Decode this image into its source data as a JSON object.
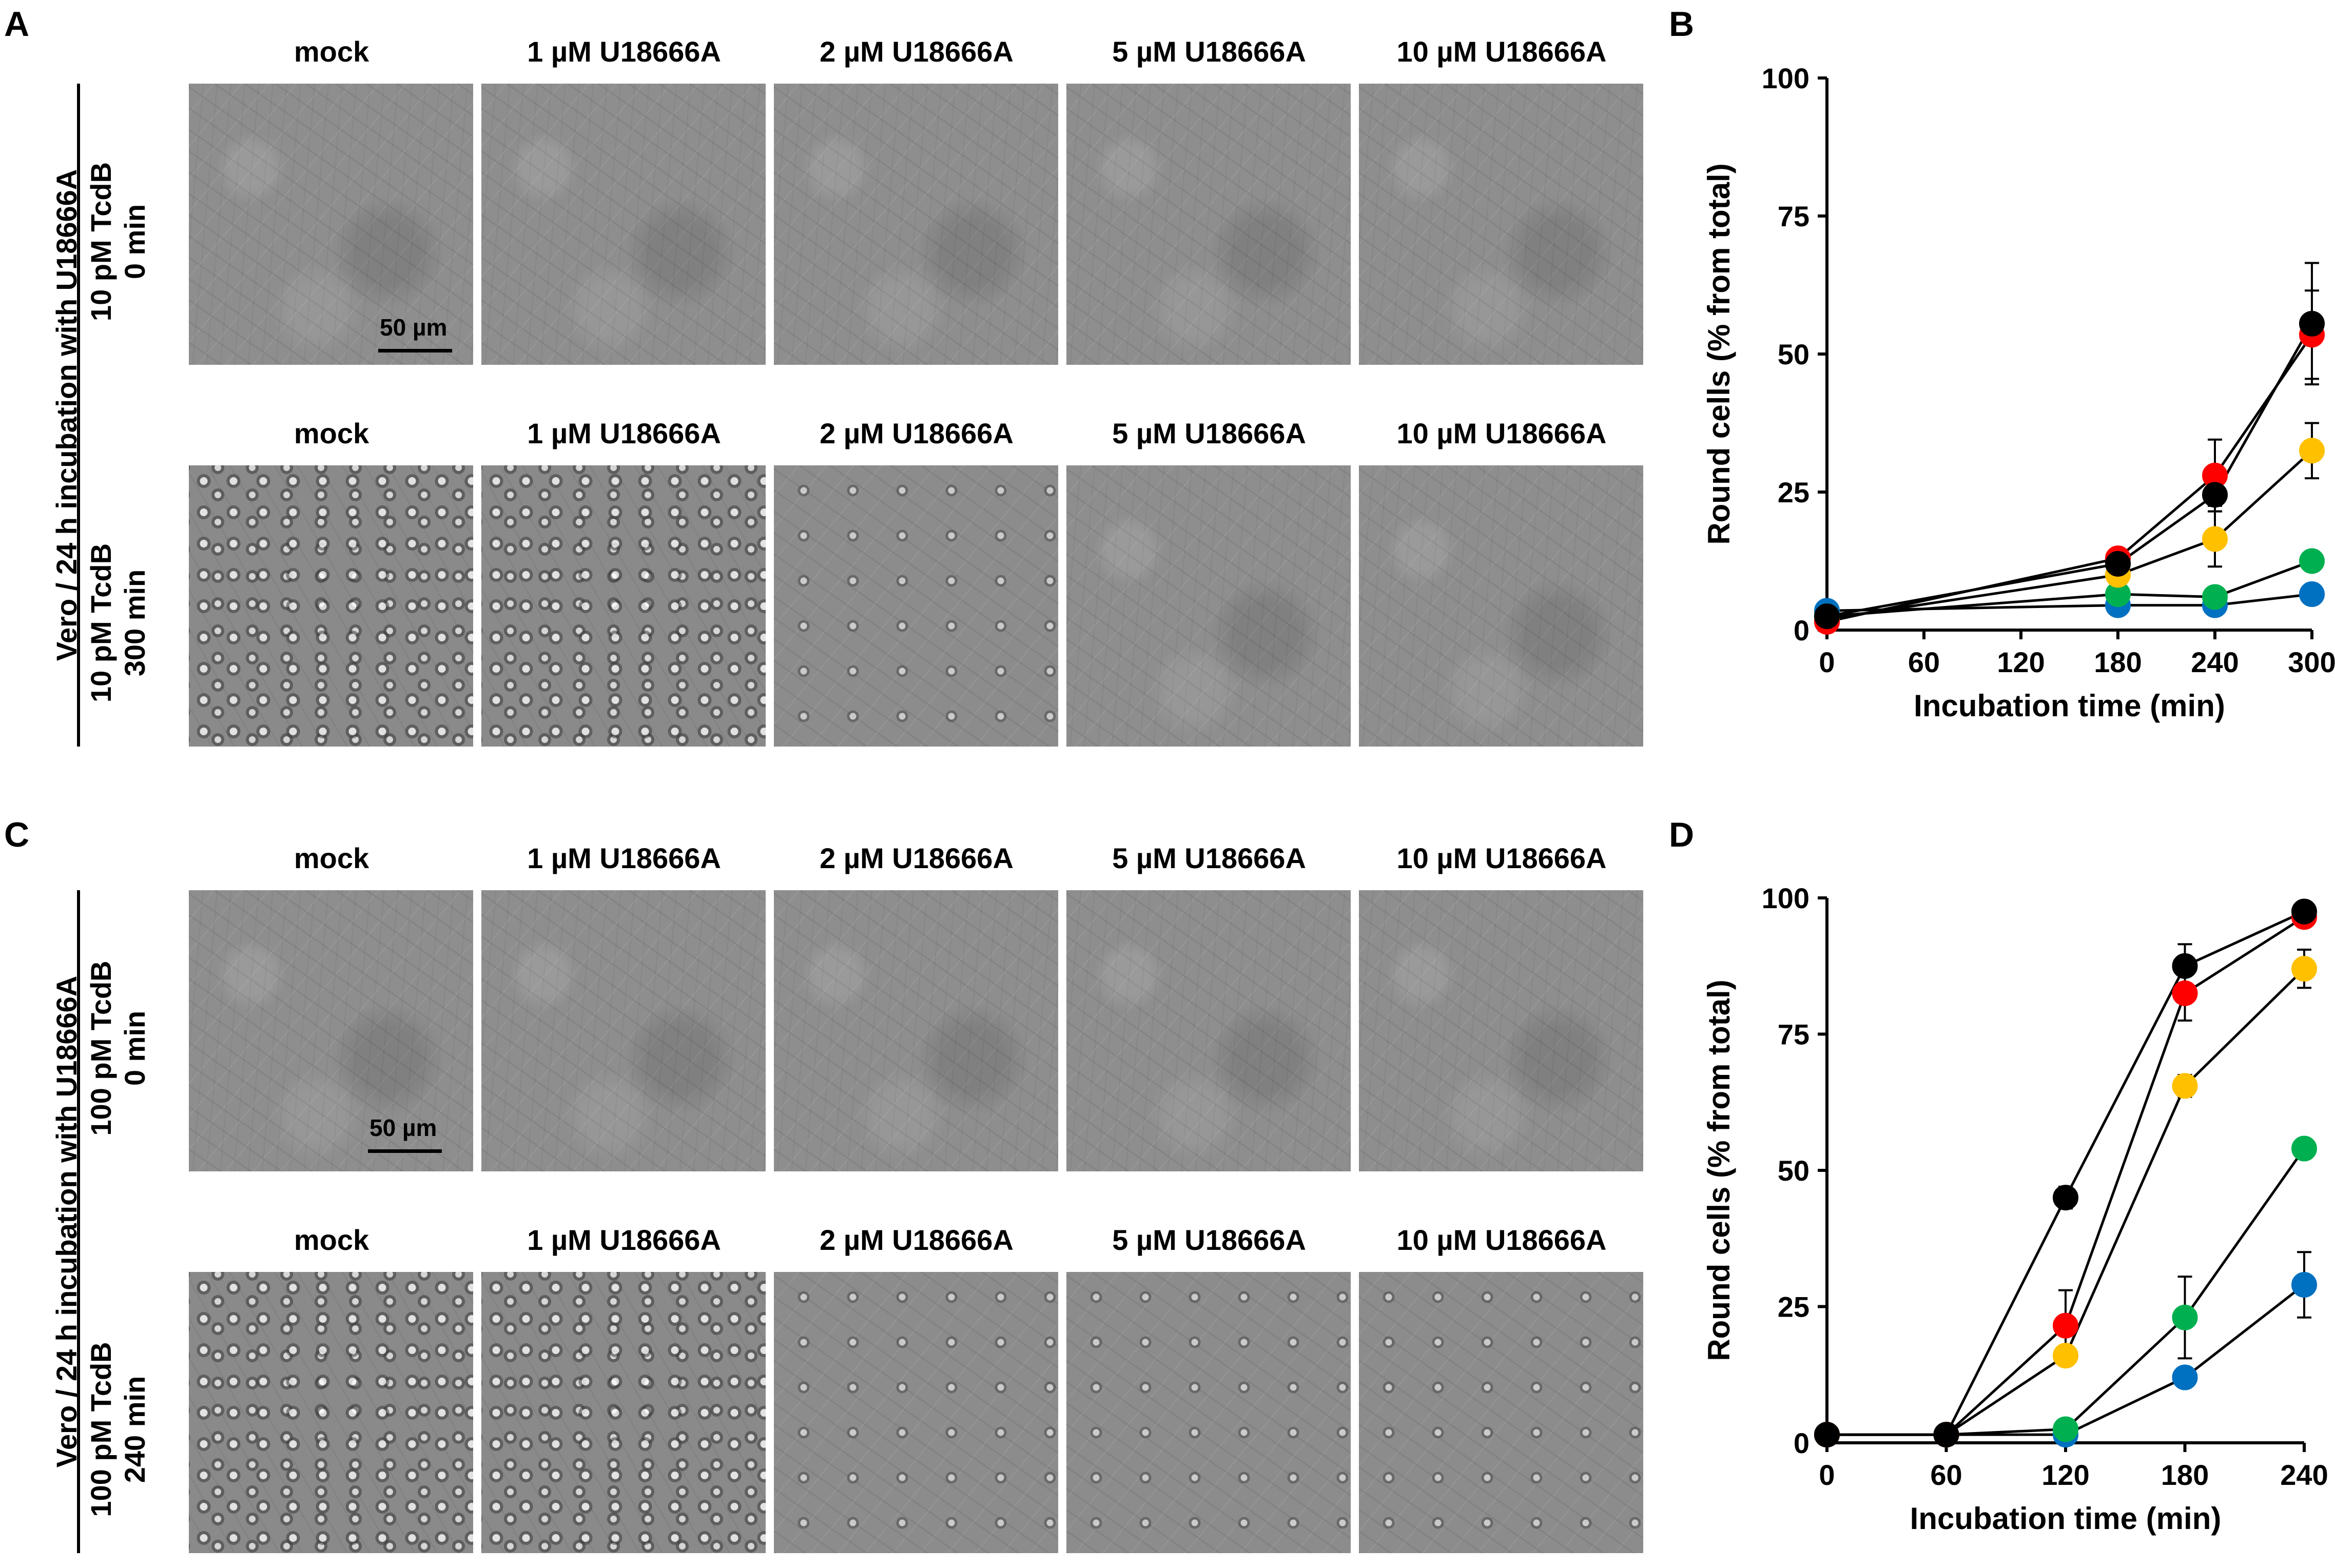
{
  "panels": {
    "A": "A",
    "B": "B",
    "C": "C",
    "D": "D"
  },
  "columns": [
    "mock",
    "1 µM U18666A",
    "2 µM U18666A",
    "5 µM U18666A",
    "10 µM U18666A"
  ],
  "top_block": {
    "group_label": "Vero / 24 h incubation with U18666A",
    "row1": {
      "line1": "10 pM TcdB",
      "line2": "0 min"
    },
    "row2": {
      "line1": "10 pM TcdB",
      "line2": "300 min"
    }
  },
  "bottom_block": {
    "group_label": "Vero / 24 h incubation with U18666A",
    "row1": {
      "line1": "100 pM TcdB",
      "line2": "0 min"
    },
    "row2": {
      "line1": "100 pM TcdB",
      "line2": "240 min"
    }
  },
  "scale_bar": "50 µm",
  "colors": {
    "black": "#000000",
    "red": "#ff0000",
    "yellow": "#ffc000",
    "green": "#00b050",
    "blue": "#0070c0"
  },
  "chart_data": [
    {
      "panel": "B",
      "type": "line",
      "xlabel": "Incubation time (min)",
      "ylabel": "Round cells (% from total)",
      "xlim": [
        0,
        300
      ],
      "ylim": [
        0,
        100
      ],
      "xticks": [
        0,
        60,
        120,
        180,
        240,
        300
      ],
      "yticks": [
        0,
        25,
        50,
        75,
        100
      ],
      "series": [
        {
          "color": "#0070c0",
          "x": [
            0,
            180,
            240,
            300
          ],
          "values": [
            3.5,
            4.5,
            4.5,
            6.5
          ],
          "errors": [
            0.5,
            0.5,
            0.5,
            0.5
          ]
        },
        {
          "color": "#00b050",
          "x": [
            0,
            180,
            240,
            300
          ],
          "values": [
            2.5,
            6.5,
            6,
            12.5
          ],
          "errors": [
            0.5,
            0.5,
            0.5,
            1.5
          ]
        },
        {
          "color": "#ffc000",
          "x": [
            0,
            180,
            240,
            300
          ],
          "values": [
            2,
            10,
            16.5,
            32.5
          ],
          "errors": [
            0.5,
            0.5,
            5,
            5
          ]
        },
        {
          "color": "#ff0000",
          "x": [
            0,
            180,
            240,
            300
          ],
          "values": [
            1.5,
            13,
            28,
            53.5
          ],
          "errors": [
            0.5,
            0.5,
            6.5,
            8
          ]
        },
        {
          "color": "#000000",
          "x": [
            0,
            180,
            240,
            300
          ],
          "values": [
            2.5,
            12,
            24.5,
            55.5
          ],
          "errors": [
            0.5,
            0.5,
            2,
            11
          ]
        }
      ]
    },
    {
      "panel": "D",
      "type": "line",
      "xlabel": "Incubation time (min)",
      "ylabel": "Round cells (% from total)",
      "xlim": [
        0,
        240
      ],
      "ylim": [
        0,
        100
      ],
      "xticks": [
        0,
        60,
        120,
        180,
        240
      ],
      "yticks": [
        0,
        25,
        50,
        75,
        100
      ],
      "series": [
        {
          "color": "#0070c0",
          "x": [
            0,
            60,
            120,
            180,
            240
          ],
          "values": [
            1.5,
            1.5,
            1.5,
            12,
            29
          ],
          "errors": [
            0.5,
            0.5,
            0.5,
            1,
            6
          ]
        },
        {
          "color": "#00b050",
          "x": [
            0,
            60,
            120,
            180,
            240
          ],
          "values": [
            1.5,
            1.5,
            2.5,
            23,
            54
          ],
          "errors": [
            0.5,
            0.5,
            0.5,
            7.5,
            1
          ]
        },
        {
          "color": "#ffc000",
          "x": [
            0,
            60,
            120,
            180,
            240
          ],
          "values": [
            1.5,
            1.5,
            16,
            65.5,
            87
          ],
          "errors": [
            0.5,
            0.5,
            1,
            2,
            3.5
          ]
        },
        {
          "color": "#ff0000",
          "x": [
            0,
            60,
            120,
            180,
            240
          ],
          "values": [
            1.5,
            1.5,
            21.5,
            82.5,
            96.5
          ],
          "errors": [
            0.5,
            0.5,
            6.5,
            5,
            0.5
          ]
        },
        {
          "color": "#000000",
          "x": [
            0,
            60,
            120,
            180,
            240
          ],
          "values": [
            1.5,
            1.5,
            45,
            87.5,
            97.5
          ],
          "errors": [
            0.5,
            0.5,
            2,
            4,
            0.5
          ]
        }
      ]
    }
  ]
}
